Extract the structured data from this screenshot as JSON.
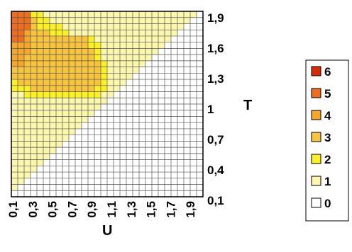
{
  "chart_data": {
    "type": "heatmap",
    "xlabel": "U",
    "ylabel": "T",
    "x_ticks": [
      "0,1",
      "0,3",
      "0,5",
      "0,7",
      "0,9",
      "1,1",
      "1,3",
      "1,5",
      "1,7",
      "1,9"
    ],
    "y_ticks": [
      "1,9",
      "1,6",
      "1,3",
      "1",
      "0,7",
      "0,4",
      "0,1"
    ],
    "x_range": [
      0.1,
      2.0
    ],
    "y_range": [
      0.1,
      2.0
    ],
    "grid": true,
    "legend_position": "right",
    "legend": [
      {
        "label": "6",
        "color": "#d82a06"
      },
      {
        "label": "5",
        "color": "#ec6e1e"
      },
      {
        "label": "4",
        "color": "#f5a62c"
      },
      {
        "label": "3",
        "color": "#f8c33d"
      },
      {
        "label": "2",
        "color": "#fbf024"
      },
      {
        "label": "1",
        "color": "#fbf7ad"
      },
      {
        "label": "0",
        "color": "#ffffff"
      }
    ],
    "values": [
      [
        5,
        5,
        5,
        2,
        2,
        1,
        1,
        1,
        1,
        1,
        1,
        1,
        1,
        1,
        1,
        1,
        1,
        1,
        1,
        1,
        1,
        1,
        1,
        1,
        1,
        1,
        1,
        1,
        1,
        0
      ],
      [
        5,
        5,
        5,
        3,
        2,
        2,
        1,
        1,
        1,
        1,
        1,
        1,
        1,
        1,
        1,
        1,
        1,
        1,
        1,
        1,
        1,
        1,
        1,
        1,
        1,
        1,
        1,
        1,
        0,
        0
      ],
      [
        5,
        5,
        5,
        3,
        2,
        2,
        2,
        2,
        1,
        1,
        1,
        1,
        1,
        1,
        1,
        1,
        1,
        1,
        1,
        1,
        1,
        1,
        1,
        1,
        1,
        1,
        1,
        0,
        0,
        0
      ],
      [
        5,
        5,
        4,
        3,
        3,
        3,
        2,
        2,
        2,
        1,
        1,
        1,
        1,
        1,
        1,
        1,
        1,
        1,
        1,
        1,
        1,
        1,
        1,
        1,
        1,
        1,
        0,
        0,
        0,
        0
      ],
      [
        5,
        5,
        4,
        3,
        3,
        3,
        3,
        3,
        3,
        3,
        3,
        3,
        2,
        1,
        1,
        1,
        1,
        1,
        1,
        1,
        1,
        1,
        1,
        1,
        1,
        0,
        0,
        0,
        0,
        0
      ],
      [
        4,
        4,
        4,
        3,
        3,
        3,
        3,
        3,
        3,
        3,
        3,
        3,
        2,
        2,
        1,
        1,
        1,
        1,
        1,
        1,
        1,
        1,
        1,
        1,
        0,
        0,
        0,
        0,
        0,
        0
      ],
      [
        4,
        4,
        4,
        3,
        3,
        3,
        3,
        3,
        3,
        3,
        3,
        3,
        3,
        2,
        1,
        1,
        1,
        1,
        1,
        1,
        1,
        1,
        1,
        0,
        0,
        0,
        0,
        0,
        0,
        0
      ],
      [
        4,
        4,
        3,
        3,
        3,
        3,
        3,
        3,
        3,
        3,
        3,
        3,
        3,
        2,
        1,
        1,
        1,
        1,
        1,
        1,
        1,
        1,
        0,
        0,
        0,
        0,
        0,
        0,
        0,
        0
      ],
      [
        4,
        4,
        3,
        3,
        3,
        3,
        3,
        3,
        3,
        3,
        3,
        3,
        3,
        3,
        2,
        1,
        1,
        1,
        1,
        1,
        1,
        0,
        0,
        0,
        0,
        0,
        0,
        0,
        0,
        0
      ],
      [
        3,
        3,
        3,
        3,
        3,
        3,
        3,
        3,
        3,
        3,
        3,
        3,
        3,
        3,
        2,
        1,
        1,
        1,
        1,
        1,
        0,
        0,
        0,
        0,
        0,
        0,
        0,
        0,
        0,
        0
      ],
      [
        3,
        3,
        3,
        3,
        3,
        3,
        3,
        3,
        3,
        3,
        3,
        3,
        3,
        3,
        2,
        1,
        1,
        1,
        1,
        0,
        0,
        0,
        0,
        0,
        0,
        0,
        0,
        0,
        0,
        0
      ],
      [
        2,
        3,
        3,
        3,
        3,
        3,
        3,
        3,
        3,
        3,
        3,
        3,
        3,
        3,
        2,
        1,
        1,
        1,
        0,
        0,
        0,
        0,
        0,
        0,
        0,
        0,
        0,
        0,
        0,
        0
      ],
      [
        2,
        2,
        2,
        3,
        3,
        3,
        3,
        3,
        3,
        3,
        3,
        3,
        3,
        2,
        2,
        1,
        1,
        0,
        0,
        0,
        0,
        0,
        0,
        0,
        0,
        0,
        0,
        0,
        0,
        0
      ],
      [
        1,
        1,
        2,
        2,
        2,
        2,
        2,
        2,
        2,
        2,
        2,
        2,
        2,
        2,
        1,
        1,
        0,
        0,
        0,
        0,
        0,
        0,
        0,
        0,
        0,
        0,
        0,
        0,
        0,
        0
      ],
      [
        1,
        1,
        1,
        1,
        1,
        1,
        1,
        1,
        1,
        1,
        1,
        1,
        1,
        1,
        1,
        0,
        0,
        0,
        0,
        0,
        0,
        0,
        0,
        0,
        0,
        0,
        0,
        0,
        0,
        0
      ],
      [
        1,
        1,
        1,
        1,
        1,
        1,
        1,
        1,
        1,
        1,
        1,
        1,
        1,
        1,
        0,
        0,
        0,
        0,
        0,
        0,
        0,
        0,
        0,
        0,
        0,
        0,
        0,
        0,
        0,
        0
      ],
      [
        1,
        1,
        1,
        1,
        1,
        1,
        1,
        1,
        1,
        1,
        1,
        1,
        1,
        0,
        0,
        0,
        0,
        0,
        0,
        0,
        0,
        0,
        0,
        0,
        0,
        0,
        0,
        0,
        0,
        0
      ],
      [
        1,
        1,
        1,
        1,
        1,
        1,
        1,
        1,
        1,
        1,
        1,
        1,
        0,
        0,
        0,
        0,
        0,
        0,
        0,
        0,
        0,
        0,
        0,
        0,
        0,
        0,
        0,
        0,
        0,
        0
      ],
      [
        1,
        1,
        1,
        1,
        1,
        1,
        1,
        1,
        1,
        1,
        1,
        0,
        0,
        0,
        0,
        0,
        0,
        0,
        0,
        0,
        0,
        0,
        0,
        0,
        0,
        0,
        0,
        0,
        0,
        0
      ],
      [
        1,
        1,
        1,
        1,
        1,
        1,
        1,
        1,
        1,
        1,
        0,
        0,
        0,
        0,
        0,
        0,
        0,
        0,
        0,
        0,
        0,
        0,
        0,
        0,
        0,
        0,
        0,
        0,
        0,
        0
      ],
      [
        1,
        1,
        1,
        1,
        1,
        1,
        1,
        1,
        1,
        0,
        0,
        0,
        0,
        0,
        0,
        0,
        0,
        0,
        0,
        0,
        0,
        0,
        0,
        0,
        0,
        0,
        0,
        0,
        0,
        0
      ],
      [
        1,
        1,
        1,
        1,
        1,
        1,
        1,
        1,
        0,
        0,
        0,
        0,
        0,
        0,
        0,
        0,
        0,
        0,
        0,
        0,
        0,
        0,
        0,
        0,
        0,
        0,
        0,
        0,
        0,
        0
      ],
      [
        1,
        1,
        1,
        1,
        1,
        1,
        1,
        0,
        0,
        0,
        0,
        0,
        0,
        0,
        0,
        0,
        0,
        0,
        0,
        0,
        0,
        0,
        0,
        0,
        0,
        0,
        0,
        0,
        0,
        0
      ],
      [
        1,
        1,
        1,
        1,
        1,
        1,
        0,
        0,
        0,
        0,
        0,
        0,
        0,
        0,
        0,
        0,
        0,
        0,
        0,
        0,
        0,
        0,
        0,
        0,
        0,
        0,
        0,
        0,
        0,
        0
      ],
      [
        1,
        1,
        1,
        1,
        1,
        0,
        0,
        0,
        0,
        0,
        0,
        0,
        0,
        0,
        0,
        0,
        0,
        0,
        0,
        0,
        0,
        0,
        0,
        0,
        0,
        0,
        0,
        0,
        0,
        0
      ],
      [
        1,
        1,
        1,
        1,
        0,
        0,
        0,
        0,
        0,
        0,
        0,
        0,
        0,
        0,
        0,
        0,
        0,
        0,
        0,
        0,
        0,
        0,
        0,
        0,
        0,
        0,
        0,
        0,
        0,
        0
      ],
      [
        1,
        1,
        1,
        0,
        0,
        0,
        0,
        0,
        0,
        0,
        0,
        0,
        0,
        0,
        0,
        0,
        0,
        0,
        0,
        0,
        0,
        0,
        0,
        0,
        0,
        0,
        0,
        0,
        0,
        0
      ],
      [
        1,
        1,
        0,
        0,
        0,
        0,
        0,
        0,
        0,
        0,
        0,
        0,
        0,
        0,
        0,
        0,
        0,
        0,
        0,
        0,
        0,
        0,
        0,
        0,
        0,
        0,
        0,
        0,
        0,
        0
      ],
      [
        1,
        0,
        0,
        0,
        0,
        0,
        0,
        0,
        0,
        0,
        0,
        0,
        0,
        0,
        0,
        0,
        0,
        0,
        0,
        0,
        0,
        0,
        0,
        0,
        0,
        0,
        0,
        0,
        0,
        0
      ],
      [
        0,
        0,
        0,
        0,
        0,
        0,
        0,
        0,
        0,
        0,
        0,
        0,
        0,
        0,
        0,
        0,
        0,
        0,
        0,
        0,
        0,
        0,
        0,
        0,
        0,
        0,
        0,
        0,
        0,
        0
      ]
    ]
  }
}
